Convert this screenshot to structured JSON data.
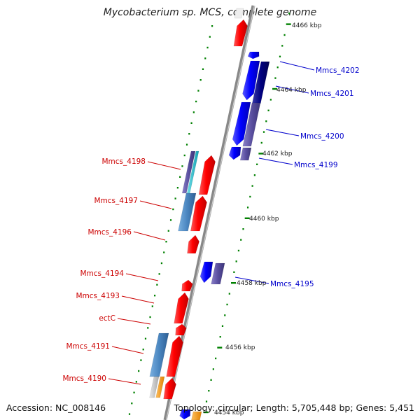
{
  "title": "Mycobacterium sp. MCS, complete genome",
  "footer": {
    "accession": "Accession: NC_008146",
    "topology": "Topology: circular; Length: 5,705,448 bp; Genes: 5,451"
  },
  "kbp_labels": [
    "4466 kbp",
    "4464 kbp",
    "4462 kbp",
    "4460 kbp",
    "4458 kbp",
    "4456 kbp",
    "4454 kbp"
  ],
  "gene_labels": {
    "right": [
      "Mmcs_4202",
      "Mmcs_4201",
      "Mmcs_4200",
      "Mmcs_4199",
      "Mmcs_4195"
    ],
    "left": [
      "Mmcs_4198",
      "Mmcs_4197",
      "Mmcs_4196",
      "Mmcs_4194",
      "Mmcs_4193",
      "ectC",
      "Mmcs_4191",
      "Mmcs_4190"
    ]
  },
  "colors": {
    "forward_gene": "#ff0000",
    "reverse_gene": "#0000ff",
    "dark_navy": "#000080",
    "slate": "#5a4fa0",
    "steel_blue": "#4a86c0",
    "cyan": "#20c0d0",
    "orange": "#ff9a00",
    "gray": "#c0c0c0",
    "left_label": "#cc0000",
    "right_label": "#0000cc",
    "tick": "#008000",
    "backbone": "#888888"
  }
}
